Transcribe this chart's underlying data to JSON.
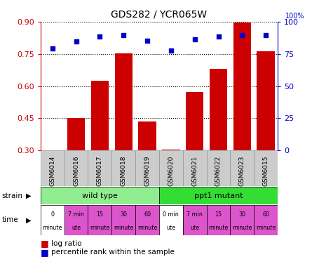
{
  "title": "GDS282 / YCR065W",
  "samples": [
    "GSM6014",
    "GSM6016",
    "GSM6017",
    "GSM6018",
    "GSM6019",
    "GSM6020",
    "GSM6021",
    "GSM6022",
    "GSM6023",
    "GSM6015"
  ],
  "log_ratio": [
    0.302,
    0.452,
    0.625,
    0.752,
    0.435,
    0.303,
    0.573,
    0.68,
    0.897,
    0.762
  ],
  "percentile_pct": [
    79.5,
    84.5,
    88.5,
    89.5,
    85.5,
    77.5,
    86.5,
    88.5,
    89.5,
    89.5
  ],
  "ylim_left": [
    0.3,
    0.9
  ],
  "ylim_right": [
    0,
    100
  ],
  "yticks_left": [
    0.3,
    0.45,
    0.6,
    0.75,
    0.9
  ],
  "yticks_right": [
    0,
    25,
    50,
    75,
    100
  ],
  "bar_color": "#cc0000",
  "dot_color": "#0000cc",
  "wild_type_color": "#90ee90",
  "ppt1_mutant_color": "#33dd33",
  "time_pink_color": "#dd55cc",
  "time_white_color": "#ffffff",
  "xtick_bg_color": "#cccccc",
  "xtick_edge_color": "#888888",
  "bg_color": "#ffffff",
  "time_labels_line1": [
    "0",
    "7 min",
    "15",
    "30",
    "60",
    "0 min",
    "7 min",
    "15",
    "30",
    "60"
  ],
  "time_labels_line2": [
    "minute",
    "ute",
    "minute",
    "minute",
    "minute",
    "ute",
    "ute",
    "minute",
    "minute",
    "minute"
  ],
  "time_is_white": [
    true,
    false,
    false,
    false,
    false,
    true,
    false,
    false,
    false,
    false
  ]
}
